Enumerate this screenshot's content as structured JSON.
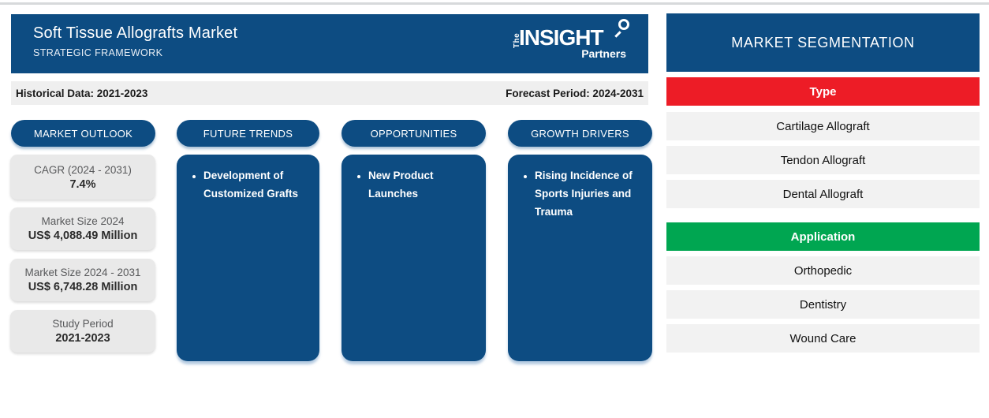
{
  "header": {
    "title": "Soft Tissue Allografts Market",
    "subtitle": "STRATEGIC FRAMEWORK",
    "logo": {
      "the": "The",
      "insight": "INSIGHT",
      "partners": "Partners"
    }
  },
  "period_bar": {
    "historical": "Historical Data: 2021-2023",
    "forecast": "Forecast Period: 2024-2031"
  },
  "columns": [
    {
      "label": "MARKET OUTLOOK",
      "stats": [
        {
          "label": "CAGR (2024 - 2031)",
          "value": "7.4%"
        },
        {
          "label": "Market Size 2024",
          "value": "US$ 4,088.49 Million"
        },
        {
          "label": "Market Size 2024 - 2031",
          "value": "US$ 6,748.28 Million"
        },
        {
          "label": "Study Period",
          "value": "2021-2023"
        }
      ]
    },
    {
      "label": "FUTURE TRENDS",
      "bullets": [
        "Development of Customized Grafts"
      ]
    },
    {
      "label": "OPPORTUNITIES",
      "bullets": [
        "New Product Launches"
      ]
    },
    {
      "label": "GROWTH DRIVERS",
      "bullets": [
        "Rising Incidence of Sports Injuries and Trauma"
      ]
    }
  ],
  "segmentation": {
    "title": "MARKET SEGMENTATION",
    "groups": [
      {
        "name": "Type",
        "color": "#ed1c26",
        "items": [
          "Cartilage Allograft",
          "Tendon Allograft",
          "Dental Allograft"
        ]
      },
      {
        "name": "Application",
        "color": "#00a651",
        "items": [
          "Orthopedic",
          "Dentistry",
          "Wound Care"
        ]
      }
    ]
  },
  "colors": {
    "brand_blue": "#0d4c82",
    "type_red": "#ed1c26",
    "application_green": "#00a651",
    "stat_card_gray": "#e9e9e9",
    "row_gray": "#f2f2f2"
  }
}
